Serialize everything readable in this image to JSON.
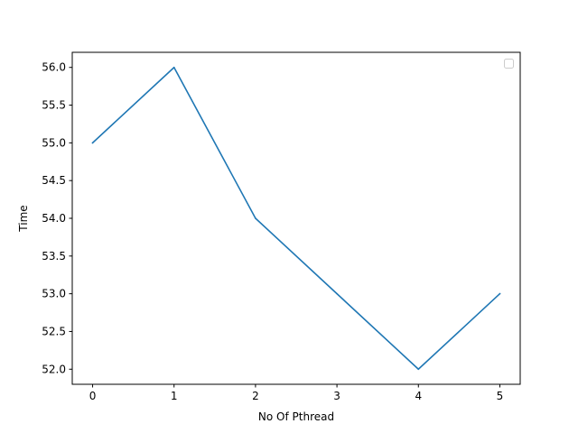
{
  "chart_data": {
    "type": "line",
    "xlabel": "No Of Pthread",
    "ylabel": "Time",
    "x": [
      0,
      1,
      2,
      3,
      4,
      5
    ],
    "series": [
      {
        "values": [
          55,
          56,
          54,
          53,
          52,
          53
        ],
        "color": "#1f77b4"
      }
    ],
    "xlim": [
      -0.25,
      5.25
    ],
    "ylim": [
      51.8,
      56.2
    ],
    "xticks": [
      0,
      1,
      2,
      3,
      4,
      5
    ],
    "xtick_labels": [
      "0",
      "1",
      "2",
      "3",
      "4",
      "5"
    ],
    "yticks": [
      52.0,
      52.5,
      53.0,
      53.5,
      54.0,
      54.5,
      55.0,
      55.5,
      56.0
    ],
    "ytick_labels": [
      "52.0",
      "52.5",
      "53.0",
      "53.5",
      "54.0",
      "54.5",
      "55.0",
      "55.5",
      "56.0"
    ],
    "grid": false,
    "legend": {
      "placement": "top-right",
      "entries": []
    }
  }
}
